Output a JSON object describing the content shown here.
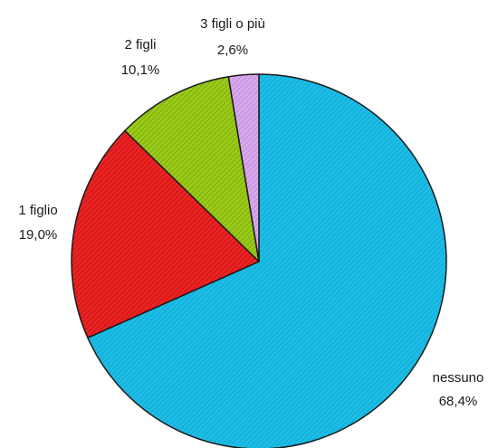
{
  "chart_data": {
    "type": "pie",
    "title": "",
    "slices": [
      {
        "label": "nessuno",
        "value_text": "68,4%",
        "value": 68.4,
        "color": "#1cbde6",
        "hatch": "#0f9cc4"
      },
      {
        "label": "1 figlio",
        "value_text": "19,0%",
        "value": 19.0,
        "color": "#ee2222",
        "hatch": "#a31010"
      },
      {
        "label": "2 figli",
        "value_text": "10,1%",
        "value": 10.1,
        "color": "#9acb18",
        "hatch": "#6d960c"
      },
      {
        "label": "3 figli o più",
        "value_text": "2,6%",
        "value": 2.6,
        "color": "#d9a8ee",
        "hatch": "#ae7cc8"
      }
    ],
    "start_angle_deg": 0,
    "direction": "clockwise",
    "legend": "none",
    "slice_border_color": "#1a1a1a"
  }
}
